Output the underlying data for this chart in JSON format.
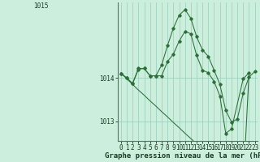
{
  "background_color": "#cceedd",
  "grid_color": "#99ccbb",
  "line_color": "#2d6e3a",
  "xlabel": "Graphe pression niveau de la mer (hPa)",
  "xlabel_fontsize": 6.5,
  "tick_fontsize": 5.5,
  "ylim": [
    1012.55,
    1015.75
  ],
  "xlim": [
    -0.5,
    23.5
  ],
  "yticks": [
    1013,
    1014
  ],
  "ytop_label": "1015",
  "xticks": [
    0,
    1,
    2,
    3,
    4,
    5,
    6,
    7,
    8,
    9,
    10,
    11,
    12,
    13,
    14,
    15,
    16,
    17,
    18,
    19,
    20,
    21,
    22,
    23
  ],
  "series": [
    [
      1014.1,
      1014.0,
      1013.87,
      1014.2,
      1014.22,
      1014.05,
      1014.05,
      1014.3,
      1014.75,
      1015.15,
      1015.45,
      1015.58,
      1015.38,
      1014.95,
      1014.65,
      1014.5,
      1014.18,
      1013.85,
      1013.25,
      1012.98,
      1013.05,
      1013.65,
      1014.02,
      1014.15
    ],
    [
      1014.1,
      1014.0,
      1013.87,
      1014.22,
      1014.22,
      1014.05,
      1014.05,
      1014.05,
      1014.38,
      1014.55,
      1014.85,
      1015.08,
      1015.02,
      1014.52,
      1014.18,
      1014.12,
      1013.92,
      1013.58,
      1012.72,
      1012.82,
      1013.98,
      1014.12
    ],
    [
      1014.12,
      1013.98,
      1013.85,
      1013.72,
      1013.6,
      1013.47,
      1013.35,
      1013.22,
      1013.1,
      1012.97,
      1012.85,
      1012.72,
      1012.6,
      1012.47,
      1012.35,
      1012.22,
      1012.1,
      1011.97,
      1011.85,
      1011.72,
      1011.6,
      1011.47,
      1014.12
    ]
  ],
  "series_x": [
    [
      0,
      1,
      2,
      3,
      4,
      5,
      6,
      7,
      8,
      9,
      10,
      11,
      12,
      13,
      14,
      15,
      16,
      17,
      18,
      19,
      20,
      21,
      22,
      23
    ],
    [
      0,
      1,
      2,
      3,
      4,
      5,
      6,
      7,
      8,
      9,
      10,
      11,
      12,
      13,
      14,
      15,
      16,
      17,
      18,
      19,
      21,
      22
    ],
    [
      0,
      1,
      2,
      3,
      4,
      5,
      6,
      7,
      8,
      9,
      10,
      11,
      12,
      13,
      14,
      15,
      16,
      17,
      18,
      19,
      20,
      21,
      22
    ]
  ],
  "series_markers": [
    true,
    true,
    false
  ]
}
